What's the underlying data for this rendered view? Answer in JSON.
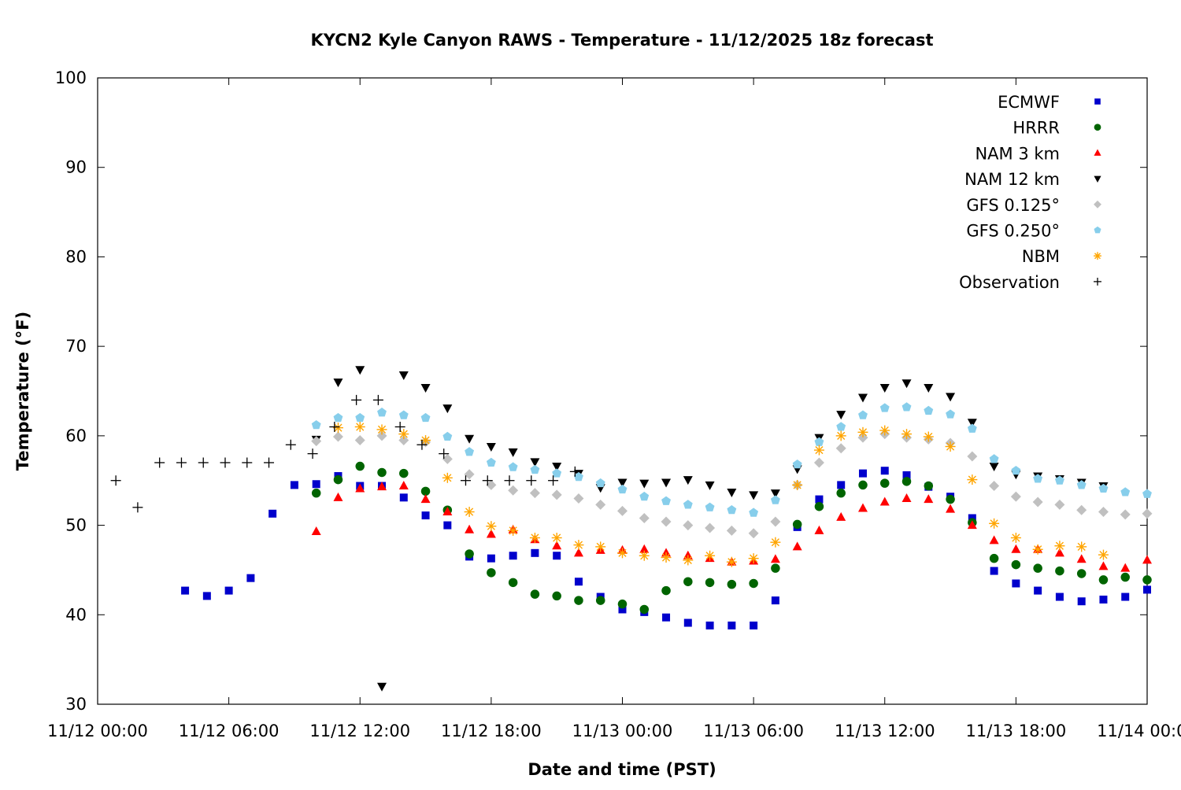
{
  "chart_data": {
    "type": "scatter",
    "title": "KYCN2 Kyle Canyon RAWS - Temperature - 11/12/2025 18z forecast",
    "xlabel": "Date and time (PST)",
    "ylabel": "Temperature (°F)",
    "ylim": [
      30,
      100
    ],
    "xlim": [
      "11/12 00:00",
      "11/14 00:00"
    ],
    "yticks": [
      "30",
      "40",
      "50",
      "60",
      "70",
      "80",
      "90",
      "100"
    ],
    "xticks": [
      "11/12 00:00",
      "11/12 06:00",
      "11/12 12:00",
      "11/12 18:00",
      "11/13 00:00",
      "11/13 06:00",
      "11/13 12:00",
      "11/13 18:00",
      "11/14 00:00"
    ],
    "grid": false,
    "legend_position": "top-right",
    "series": [
      {
        "name": "ECMWF",
        "marker": "square",
        "color": "#0000cc",
        "start": "11/12 04:00",
        "step_hours": 1,
        "values": [
          42.7,
          42.1,
          42.7,
          44.1,
          51.3,
          54.5,
          54.6,
          55.5,
          54.4,
          54.4,
          53.1,
          51.1,
          50.0,
          46.5,
          46.3,
          46.6,
          46.9,
          46.6,
          43.7,
          42.0,
          40.6,
          40.3,
          39.7,
          39.1,
          38.8,
          38.8,
          38.8,
          41.6,
          49.8,
          52.9,
          54.5,
          55.8,
          56.1,
          55.6,
          54.3,
          53.2,
          50.8,
          44.9,
          43.5,
          42.7,
          42.0,
          41.5,
          41.7,
          42.0,
          42.8
        ]
      },
      {
        "name": "HRRR",
        "marker": "circle",
        "color": "#006400",
        "start": "11/12 10:00",
        "step_hours": 1,
        "values": [
          53.6,
          55.1,
          56.6,
          55.9,
          55.8,
          53.8,
          51.7,
          46.8,
          44.7,
          43.6,
          42.3,
          42.1,
          41.6,
          41.6,
          41.2,
          40.6,
          42.7,
          43.7,
          43.6,
          43.4,
          43.5,
          45.2,
          50.1,
          52.1,
          53.6,
          54.5,
          54.7,
          54.9,
          54.4,
          52.9,
          50.3,
          46.3,
          45.6,
          45.2,
          44.9,
          44.6,
          43.9,
          44.2,
          43.9
        ]
      },
      {
        "name": "NAM 3 km",
        "marker": "triangle-up",
        "color": "#ff0000",
        "start": "11/12 10:00",
        "step_hours": 1,
        "values": [
          49.3,
          53.1,
          54.1,
          54.3,
          54.4,
          52.9,
          51.5,
          49.5,
          49.0,
          49.5,
          48.4,
          47.7,
          46.9,
          47.2,
          47.2,
          47.3,
          46.9,
          46.6,
          46.3,
          45.9,
          46.0,
          46.2,
          47.6,
          49.4,
          50.9,
          51.9,
          52.6,
          53.0,
          52.9,
          51.8,
          50.0,
          48.3,
          47.3,
          47.3,
          46.9,
          46.2,
          45.4,
          45.2,
          46.1
        ]
      },
      {
        "name": "NAM 12 km",
        "marker": "triangle-down",
        "color": "#000000",
        "start": "11/12 10:00",
        "step_hours": 1,
        "values": [
          59.6,
          66.0,
          67.4,
          32.0,
          66.8,
          65.4,
          63.1,
          59.7,
          58.8,
          58.2,
          57.1,
          56.6,
          55.8,
          54.2,
          54.8,
          54.7,
          54.8,
          55.1,
          54.5,
          53.7,
          53.4,
          53.6,
          56.3,
          59.8,
          62.4,
          64.3,
          65.4,
          65.9,
          65.4,
          64.4,
          61.5,
          56.6,
          55.7,
          55.5,
          55.2,
          54.8,
          54.4
        ]
      },
      {
        "name": "GFS 0.125°",
        "marker": "diamond",
        "color": "#c0c0c0",
        "start": "11/12 10:00",
        "step_hours": 1,
        "values": [
          59.4,
          59.9,
          59.5,
          60.0,
          59.5,
          59.3,
          57.4,
          55.7,
          54.5,
          53.9,
          53.6,
          53.4,
          53.0,
          52.3,
          51.6,
          50.8,
          50.4,
          50.0,
          49.7,
          49.4,
          49.1,
          50.4,
          54.5,
          57.0,
          58.6,
          59.8,
          60.2,
          59.8,
          59.6,
          59.2,
          57.7,
          54.4,
          53.2,
          52.6,
          52.3,
          51.7,
          51.5,
          51.2,
          51.3
        ]
      },
      {
        "name": "GFS 0.250°",
        "marker": "pentagon",
        "color": "#87ceeb",
        "start": "11/12 10:00",
        "step_hours": 1,
        "values": [
          61.2,
          62.0,
          62.0,
          62.6,
          62.3,
          62.0,
          59.9,
          58.2,
          57.0,
          56.5,
          56.2,
          55.8,
          55.4,
          54.7,
          54.0,
          53.2,
          52.7,
          52.3,
          52.0,
          51.7,
          51.4,
          52.8,
          56.8,
          59.3,
          61.0,
          62.3,
          63.1,
          63.2,
          62.8,
          62.4,
          60.8,
          57.4,
          56.1,
          55.2,
          55.0,
          54.5,
          54.1,
          53.7,
          53.5
        ]
      },
      {
        "name": "NBM",
        "marker": "asterisk",
        "color": "#ffa500",
        "start": "11/12 11:00",
        "step_hours": 1,
        "values": [
          60.9,
          61.0,
          60.7,
          60.2,
          59.5,
          55.3,
          51.5,
          49.9,
          49.4,
          48.6,
          48.6,
          47.8,
          47.6,
          46.9,
          46.6,
          46.4,
          46.1,
          46.6,
          45.9,
          46.3,
          48.1,
          54.5,
          58.4,
          60.0,
          60.4,
          60.6,
          60.2,
          59.9,
          58.8,
          55.1,
          50.2,
          48.6,
          47.3,
          47.7,
          47.6,
          46.7
        ]
      },
      {
        "name": "Observation",
        "marker": "plus",
        "color": "#000000",
        "points": [
          [
            "11/12 00:50",
            55
          ],
          [
            "11/12 01:50",
            52
          ],
          [
            "11/12 02:50",
            57
          ],
          [
            "11/12 03:50",
            57
          ],
          [
            "11/12 04:50",
            57
          ],
          [
            "11/12 05:50",
            57
          ],
          [
            "11/12 06:50",
            57
          ],
          [
            "11/12 07:50",
            57
          ],
          [
            "11/12 08:50",
            59
          ],
          [
            "11/12 09:50",
            58
          ],
          [
            "11/12 10:50",
            61
          ],
          [
            "11/12 11:50",
            64
          ],
          [
            "11/12 12:50",
            64
          ],
          [
            "11/12 13:50",
            61
          ],
          [
            "11/12 14:50",
            59
          ],
          [
            "11/12 15:50",
            58
          ],
          [
            "11/12 16:50",
            55
          ],
          [
            "11/12 17:50",
            55
          ],
          [
            "11/12 18:50",
            55
          ],
          [
            "11/12 19:50",
            55
          ],
          [
            "11/12 20:50",
            55
          ],
          [
            "11/12 21:50",
            56
          ]
        ]
      }
    ]
  }
}
